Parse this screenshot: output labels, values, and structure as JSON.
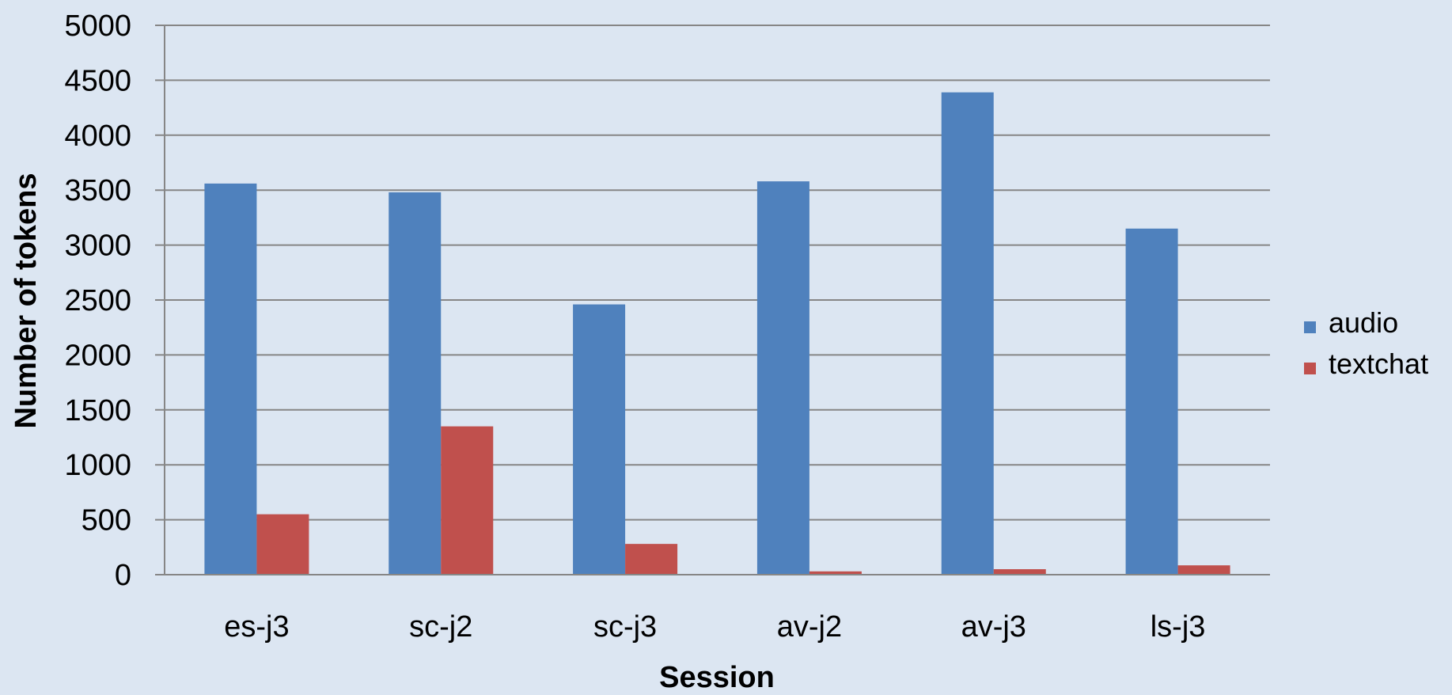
{
  "chart_data": {
    "type": "bar",
    "title": "",
    "xlabel": "Session",
    "ylabel": "Number of tokens",
    "categories": [
      "es-j3",
      "sc-j2",
      "sc-j3",
      "av-j2",
      "av-j3",
      "ls-j3"
    ],
    "series": [
      {
        "name": "audio",
        "color": "#4f81bd",
        "values": [
          3560,
          3480,
          2460,
          3580,
          4390,
          3150
        ]
      },
      {
        "name": "textchat",
        "color": "#c0504d",
        "values": [
          550,
          1350,
          280,
          30,
          50,
          85
        ]
      }
    ],
    "ylim": [
      0,
      5000
    ],
    "yticks": [
      "0",
      "500",
      "1000",
      "1500",
      "2000",
      "2500",
      "3000",
      "3500",
      "4000",
      "4500",
      "5000"
    ],
    "grid": true,
    "legend_position": "right"
  }
}
